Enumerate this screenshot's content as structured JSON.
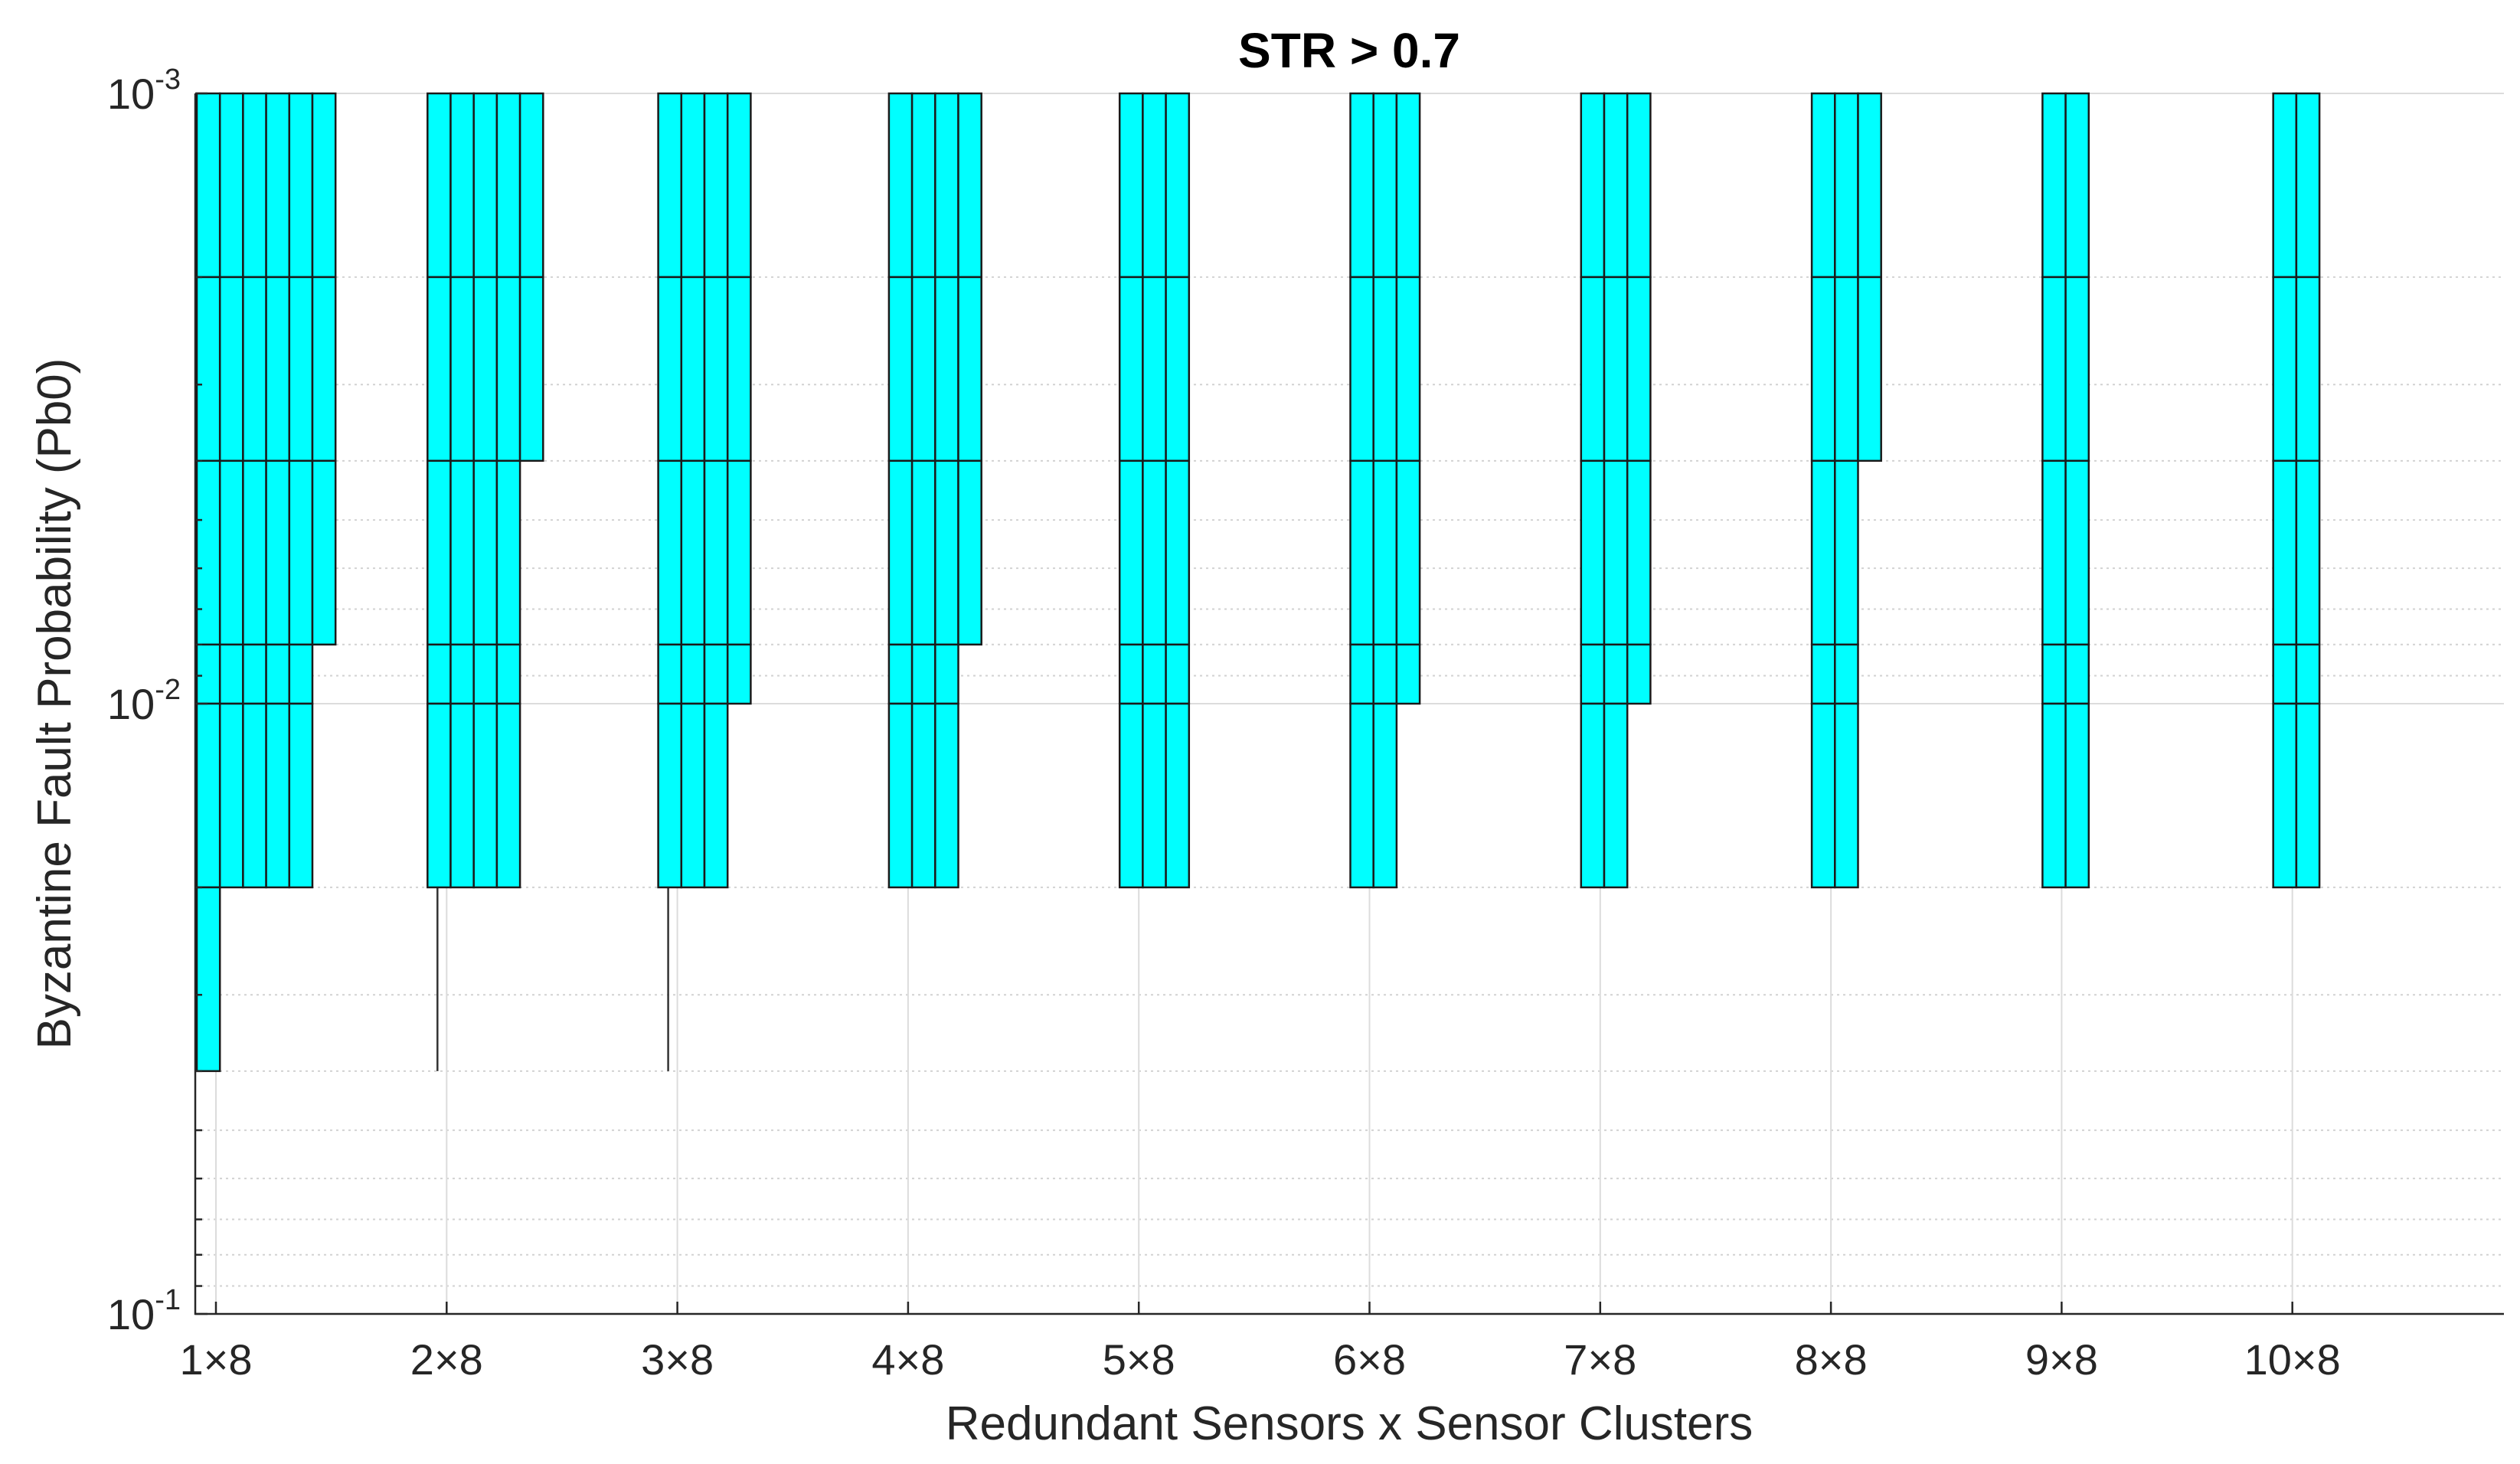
{
  "chart_data": {
    "type": "bar",
    "title": "STR > 0.7",
    "xlabel": "Redundant Sensors x Sensor Clusters",
    "ylabel": "Byzantine Fault Probability (Pb0)",
    "categories": [
      "1×8",
      "2×8",
      "3×8",
      "4×8",
      "5×8",
      "6×8",
      "7×8",
      "8×8",
      "9×8",
      "10×8"
    ],
    "y_scale": "log",
    "y_direction": "reversed",
    "ylim": [
      0.001,
      0.1
    ],
    "y_ticks": [
      {
        "value": 0.001,
        "base": "10",
        "exp": "-3"
      },
      {
        "value": 0.01,
        "base": "10",
        "exp": "-2"
      },
      {
        "value": 0.1,
        "base": "10",
        "exp": "-1"
      }
    ],
    "pb0_levels": [
      0.001,
      0.002,
      0.004,
      0.008,
      0.01,
      0.02,
      0.04
    ],
    "fill_color": "#00ffff",
    "edge_color": "#1a1a1a",
    "subbar_count": 6,
    "note": "For each configuration, six sub-bars (adjacent values). Each sub-bar is the Pb0 level index (0-based into pb0_levels) down to which STR > 0.7 holds; null = no bar.",
    "series_depth_index": [
      [
        6,
        5,
        5,
        5,
        5,
        3
      ],
      [
        5,
        5,
        5,
        5,
        2,
        null
      ],
      [
        5,
        5,
        5,
        4,
        null,
        null
      ],
      [
        5,
        5,
        5,
        3,
        null,
        null
      ],
      [
        5,
        5,
        5,
        null,
        null,
        null
      ],
      [
        5,
        5,
        4,
        null,
        null,
        null
      ],
      [
        5,
        5,
        4,
        null,
        null,
        null
      ],
      [
        5,
        5,
        2,
        null,
        null,
        null
      ],
      [
        5,
        5,
        null,
        null,
        null,
        null
      ],
      [
        5,
        5,
        null,
        null,
        null,
        null
      ]
    ],
    "stems": [
      {
        "category": "2×8",
        "from": 0.02,
        "to": 0.04
      },
      {
        "category": "3×8",
        "from": 0.02,
        "to": 0.04
      }
    ]
  }
}
